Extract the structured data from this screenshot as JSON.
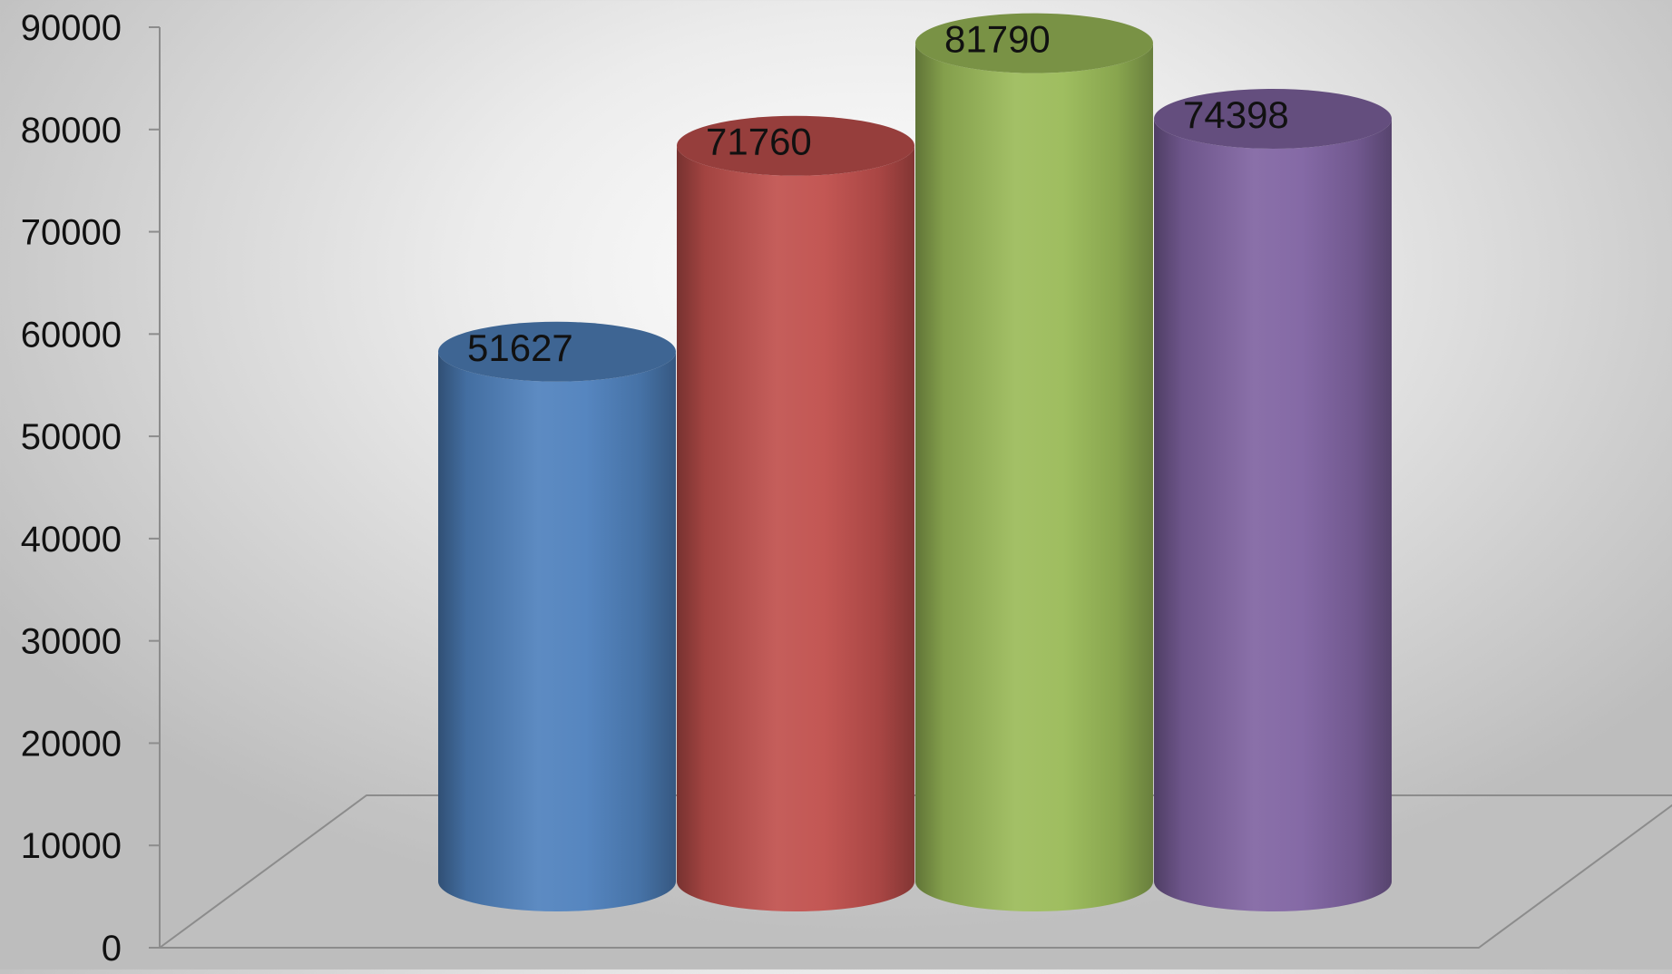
{
  "chart_data": {
    "type": "bar",
    "style": "3d-cylinder",
    "categories": [
      "",
      "",
      "",
      ""
    ],
    "values": [
      51627,
      71760,
      81790,
      74398
    ],
    "value_labels": [
      "51627",
      "71760",
      "81790",
      "74398"
    ],
    "colors": [
      "#4f81bd",
      "#c0504d",
      "#9bbb59",
      "#8064a2"
    ],
    "title": "",
    "xlabel": "",
    "ylabel": "",
    "ylim": [
      0,
      90000
    ],
    "yticks": [
      0,
      10000,
      20000,
      30000,
      40000,
      50000,
      60000,
      70000,
      80000,
      90000
    ],
    "ytick_labels": [
      "0",
      "10000",
      "20000",
      "30000",
      "40000",
      "50000",
      "60000",
      "70000",
      "80000",
      "90000"
    ],
    "grid": false,
    "legend": "none"
  }
}
